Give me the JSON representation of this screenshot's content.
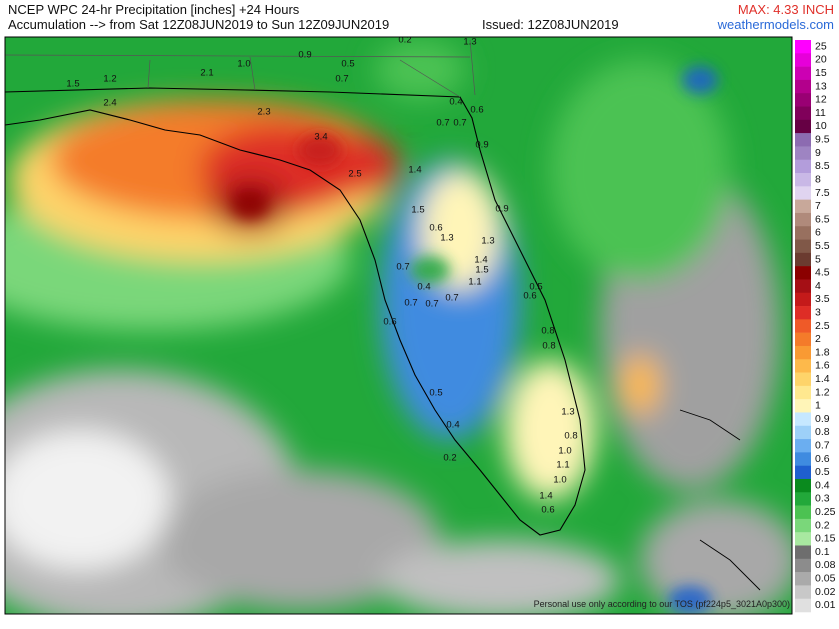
{
  "header": {
    "title": "NCEP WPC 24-hr Precipitation [inches] +24 Hours",
    "subtitle": "Accumulation --> from Sat 12Z08JUN2019 to Sun 12Z09JUN2019",
    "issued": "Issued: 12Z08JUN2019",
    "max": "MAX: 4.33 INCH",
    "site": "weathermodels.com"
  },
  "footer": {
    "note": "Personal use only according to our TOS (pf224p5_3021A0p300)"
  },
  "legend": [
    {
      "label": "25",
      "color": "#ff00ff"
    },
    {
      "label": "20",
      "color": "#e600d9"
    },
    {
      "label": "15",
      "color": "#cc00b3"
    },
    {
      "label": "13",
      "color": "#b3008c"
    },
    {
      "label": "12",
      "color": "#990073"
    },
    {
      "label": "11",
      "color": "#80005a"
    },
    {
      "label": "10",
      "color": "#660044"
    },
    {
      "label": "9.5",
      "color": "#8c6bb1"
    },
    {
      "label": "9",
      "color": "#9e84c2"
    },
    {
      "label": "8.5",
      "color": "#b39ddb"
    },
    {
      "label": "8",
      "color": "#c9b8e6"
    },
    {
      "label": "7.5",
      "color": "#e0d4f0"
    },
    {
      "label": "7",
      "color": "#c8a89a"
    },
    {
      "label": "6.5",
      "color": "#b08a7b"
    },
    {
      "label": "6",
      "color": "#98705f"
    },
    {
      "label": "5.5",
      "color": "#805848"
    },
    {
      "label": "5",
      "color": "#6b3b30"
    },
    {
      "label": "4.5",
      "color": "#8b0000"
    },
    {
      "label": "4",
      "color": "#a50f15"
    },
    {
      "label": "3.5",
      "color": "#c41a1a"
    },
    {
      "label": "3",
      "color": "#de2d26"
    },
    {
      "label": "2.5",
      "color": "#ef5a28"
    },
    {
      "label": "2",
      "color": "#f47b2a"
    },
    {
      "label": "1.8",
      "color": "#f99a33"
    },
    {
      "label": "1.6",
      "color": "#fdb94b"
    },
    {
      "label": "1.4",
      "color": "#fed46a"
    },
    {
      "label": "1.2",
      "color": "#ffe88f"
    },
    {
      "label": "1",
      "color": "#fff5b8"
    },
    {
      "label": "0.9",
      "color": "#c6e8ff"
    },
    {
      "label": "0.8",
      "color": "#9dd0f8"
    },
    {
      "label": "0.7",
      "color": "#6baef0"
    },
    {
      "label": "0.6",
      "color": "#3f8be0"
    },
    {
      "label": "0.5",
      "color": "#1f5fcf"
    },
    {
      "label": "0.4",
      "color": "#0a8a1e"
    },
    {
      "label": "0.3",
      "color": "#22a83a"
    },
    {
      "label": "0.25",
      "color": "#4cc252"
    },
    {
      "label": "0.2",
      "color": "#7ad77a"
    },
    {
      "label": "0.15",
      "color": "#a8e8a0"
    },
    {
      "label": "0.1",
      "color": "#6e6e6e"
    },
    {
      "label": "0.08",
      "color": "#8c8c8c"
    },
    {
      "label": "0.05",
      "color": "#aaaaaa"
    },
    {
      "label": "0.02",
      "color": "#c8c8c8"
    },
    {
      "label": "0.01",
      "color": "#e0e0e0"
    }
  ],
  "map_labels": [
    "1.5",
    "1.2",
    "2.1",
    "1.0",
    "0.9",
    "0.5",
    "0.7",
    "0.2",
    "1.3",
    "2.4",
    "2.3",
    "3.4",
    "0.4",
    "0.6",
    "0.7",
    "0.7",
    "0.9",
    "1.4",
    "2.5",
    "1.5",
    "0.9",
    "0.6",
    "1.3",
    "1.3",
    "1.4",
    "1.5",
    "0.7",
    "0.4",
    "1.1",
    "0.5",
    "0.7",
    "0.7",
    "0.7",
    "0.6",
    "0.8",
    "0.8",
    "0.6",
    "0.5",
    "0.4",
    "1.3",
    "0.8",
    "1.0",
    "1.1",
    "1.0",
    "1.4",
    "0.2",
    "0.6"
  ]
}
